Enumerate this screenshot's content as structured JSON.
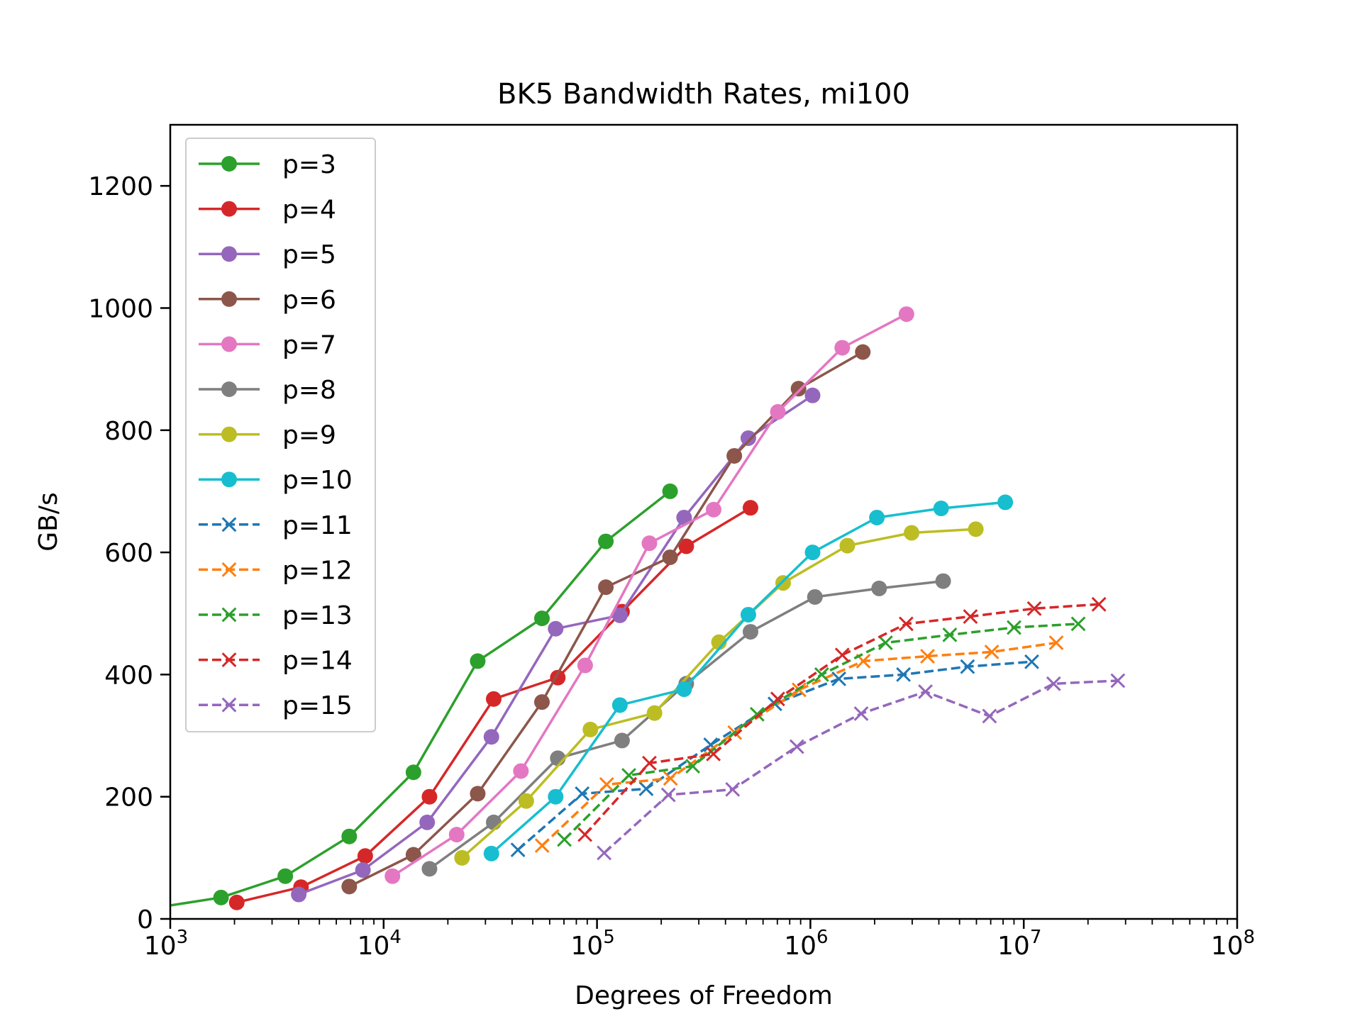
{
  "chart_data": {
    "type": "line",
    "title": "BK5 Bandwidth Rates, mi100",
    "xlabel": "Degrees of Freedom",
    "ylabel": "GB/s",
    "xscale": "log",
    "xlim": [
      1000,
      100000000
    ],
    "ylim": [
      0,
      1300
    ],
    "xticks": [
      {
        "base": "10",
        "exp": "3"
      },
      {
        "base": "10",
        "exp": "4"
      },
      {
        "base": "10",
        "exp": "5"
      },
      {
        "base": "10",
        "exp": "6"
      },
      {
        "base": "10",
        "exp": "7"
      },
      {
        "base": "10",
        "exp": "8"
      }
    ],
    "yticks": [
      "0",
      "200",
      "400",
      "600",
      "800",
      "1000",
      "1200"
    ],
    "legend_position": "top-left",
    "grid": false,
    "series": [
      {
        "name": "p=3",
        "color": "#2ca02c",
        "marker": "circle",
        "dash": false,
        "x": [
          600,
          1730,
          3460,
          6900,
          13800,
          27600,
          55200,
          110000,
          220000
        ],
        "y": [
          10,
          35,
          70,
          135,
          240,
          422,
          492,
          618,
          700
        ]
      },
      {
        "name": "p=4",
        "color": "#d62728",
        "marker": "circle",
        "dash": false,
        "x": [
          2050,
          4100,
          8200,
          16400,
          32800,
          65500,
          131000,
          262000,
          524000
        ],
        "y": [
          27,
          52,
          103,
          200,
          360,
          395,
          503,
          610,
          673
        ]
      },
      {
        "name": "p=5",
        "color": "#9467bd",
        "marker": "circle",
        "dash": false,
        "x": [
          4000,
          8000,
          16000,
          32000,
          64000,
          128000,
          256000,
          512000,
          1024000
        ],
        "y": [
          40,
          80,
          158,
          298,
          475,
          497,
          657,
          787,
          857
        ]
      },
      {
        "name": "p=6",
        "color": "#8c564b",
        "marker": "circle",
        "dash": false,
        "x": [
          6900,
          13800,
          27600,
          55200,
          110000,
          220000,
          440000,
          880000,
          1760000
        ],
        "y": [
          53,
          105,
          205,
          355,
          543,
          592,
          758,
          868,
          928
        ]
      },
      {
        "name": "p=7",
        "color": "#e377c2",
        "marker": "circle",
        "dash": false,
        "x": [
          11000,
          22000,
          44000,
          88000,
          176000,
          352000,
          704000,
          1410000,
          2820000
        ],
        "y": [
          70,
          138,
          242,
          415,
          615,
          670,
          830,
          935,
          990
        ]
      },
      {
        "name": "p=8",
        "color": "#7f7f7f",
        "marker": "circle",
        "dash": false,
        "x": [
          16400,
          32800,
          65500,
          131000,
          262000,
          524000,
          1050000,
          2100000,
          4190000
        ],
        "y": [
          82,
          158,
          263,
          292,
          385,
          470,
          527,
          541,
          553
        ]
      },
      {
        "name": "p=9",
        "color": "#bcbd22",
        "marker": "circle",
        "dash": false,
        "x": [
          23300,
          46600,
          93100,
          186000,
          373000,
          745000,
          1490000,
          2980000,
          5960000
        ],
        "y": [
          100,
          193,
          310,
          337,
          453,
          550,
          611,
          632,
          638
        ]
      },
      {
        "name": "p=10",
        "color": "#17becf",
        "marker": "circle",
        "dash": false,
        "x": [
          32000,
          64000,
          128000,
          256000,
          512000,
          1024000,
          2050000,
          4100000,
          8190000
        ],
        "y": [
          107,
          200,
          350,
          376,
          498,
          600,
          657,
          672,
          682
        ]
      },
      {
        "name": "p=11",
        "color": "#1f77b4",
        "marker": "x",
        "dash": true,
        "x": [
          42600,
          85200,
          170000,
          341000,
          682000,
          1360000,
          2730000,
          5450000,
          10900000
        ],
        "y": [
          113,
          205,
          213,
          285,
          352,
          393,
          400,
          413,
          421
        ]
      },
      {
        "name": "p=12",
        "color": "#ff7f0e",
        "marker": "x",
        "dash": true,
        "x": [
          55300,
          111000,
          221000,
          442000,
          885000,
          1770000,
          3540000,
          7080000,
          14200000
        ],
        "y": [
          120,
          220,
          230,
          305,
          375,
          422,
          430,
          437,
          452
        ]
      },
      {
        "name": "p=13",
        "color": "#2ca02c",
        "marker": "x",
        "dash": true,
        "x": [
          70300,
          141000,
          281000,
          563000,
          1130000,
          2250000,
          4500000,
          9000000,
          18000000
        ],
        "y": [
          130,
          235,
          250,
          335,
          400,
          452,
          465,
          477,
          483
        ]
      },
      {
        "name": "p=14",
        "color": "#d62728",
        "marker": "x",
        "dash": true,
        "x": [
          87800,
          176000,
          351000,
          703000,
          1410000,
          2810000,
          5620000,
          11200000,
          22500000
        ],
        "y": [
          138,
          255,
          270,
          360,
          432,
          483,
          495,
          508,
          515
        ]
      },
      {
        "name": "p=15",
        "color": "#9467bd",
        "marker": "x",
        "dash": true,
        "x": [
          108000,
          216000,
          432000,
          864000,
          1730000,
          3460000,
          6910000,
          13800000,
          27600000
        ],
        "y": [
          108,
          203,
          212,
          282,
          336,
          372,
          332,
          385,
          390
        ]
      }
    ]
  }
}
